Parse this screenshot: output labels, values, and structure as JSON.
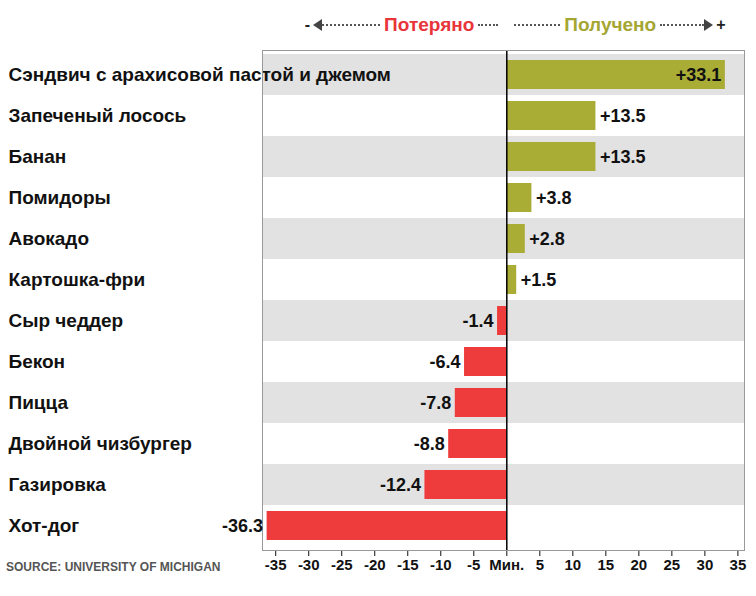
{
  "chart_data": {
    "type": "bar",
    "orientation": "horizontal",
    "annotations": {
      "lost": {
        "text": "Потеряно",
        "sign": "-",
        "color": "#e8343a"
      },
      "gained": {
        "text": "Получено",
        "sign": "+",
        "color": "#a5a631"
      }
    },
    "source": "SOURCE: UNIVERSITY OF MICHIGAN",
    "categories": [
      "Сэндвич с арахисовой пастой и джемом",
      "Запеченый лосось",
      "Банан",
      "Помидоры",
      "Авокадо",
      "Картошка-фри",
      "Сыр чеддер",
      "Бекон",
      "Пицца",
      "Двойной чизбургер",
      "Газировка",
      "Хот-дог"
    ],
    "values": [
      33.1,
      13.5,
      13.5,
      3.8,
      2.8,
      1.5,
      -1.4,
      -6.4,
      -7.8,
      -8.8,
      -12.4,
      -36.3
    ],
    "value_labels": [
      "+33.1",
      "+13.5",
      "+13.5",
      "+3.8",
      "+2.8",
      "+1.5",
      "-1.4",
      "-6.4",
      "-7.8",
      "-8.8",
      "-12.4",
      "-36.3"
    ],
    "colors": [
      "#a9ac35",
      "#a9ac35",
      "#a9ac35",
      "#a9ac35",
      "#a9ac35",
      "#a9ac35",
      "#ee3b3b",
      "#ee3b3b",
      "#ee3b3b",
      "#ee3b3b",
      "#ee3b3b",
      "#ee3b3b"
    ],
    "xlim": [
      -37,
      36
    ],
    "xticks": [
      -35,
      -30,
      -25,
      -20,
      -15,
      -10,
      -5,
      {
        "value": 0,
        "label": "Мин."
      },
      5,
      10,
      15,
      20,
      25,
      30,
      35
    ],
    "data_labels": true,
    "grid": false
  }
}
